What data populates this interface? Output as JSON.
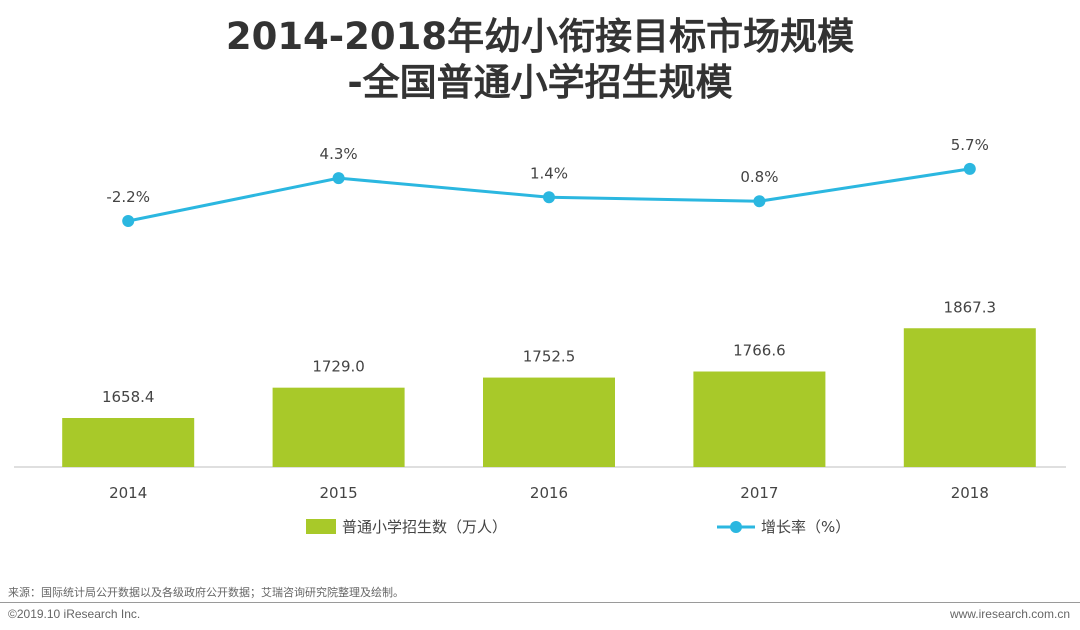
{
  "title_line1": "2014-2018年幼小衔接目标市场规模",
  "title_line2": "-全国普通小学招生规模",
  "chart_data": {
    "type": "bar",
    "categories": [
      "2014",
      "2015",
      "2016",
      "2017",
      "2018"
    ],
    "series": [
      {
        "name": "普通小学招生数（万人）",
        "type": "bar",
        "values": [
          1658.4,
          1729.0,
          1752.5,
          1766.6,
          1867.3
        ],
        "labels": [
          "1658.4",
          "1729.0",
          "1752.5",
          "1766.6",
          "1867.3"
        ],
        "color": "#A8C929"
      },
      {
        "name": "增长率（%）",
        "type": "line",
        "values": [
          -2.2,
          4.3,
          1.4,
          0.8,
          5.7
        ],
        "labels": [
          "-2.2%",
          "4.3%",
          "1.4%",
          "0.8%",
          "5.7%"
        ],
        "color": "#2BB7E0"
      }
    ],
    "legend_position": "bottom-center",
    "grid": false
  },
  "source": "来源：国际统计局公开数据以及各级政府公开数据；艾瑞咨询研究院整理及绘制。",
  "footer_left": "©2019.10 iResearch Inc.",
  "footer_right": "www.iresearch.com.cn"
}
